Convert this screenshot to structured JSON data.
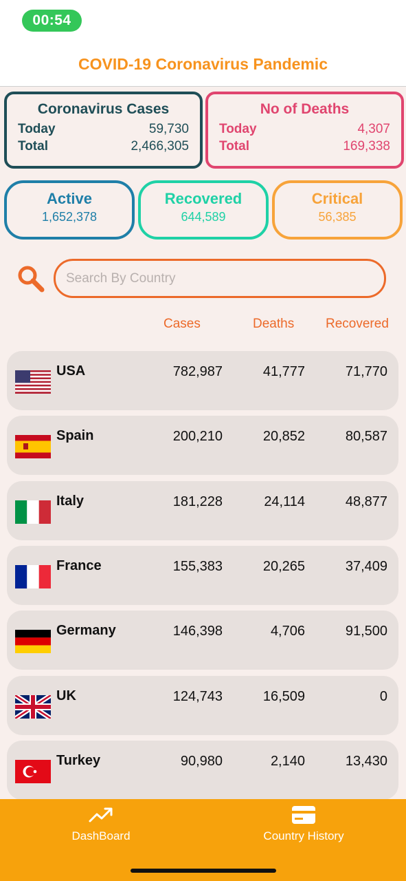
{
  "status": {
    "time": "00:54"
  },
  "header": {
    "title": "COVID-19 Coronavirus Pandemic"
  },
  "summary": {
    "cases": {
      "title": "Coronavirus Cases",
      "today_label": "Today",
      "today": "59,730",
      "total_label": "Total",
      "total": "2,466,305"
    },
    "deaths": {
      "title": "No of Deaths",
      "today_label": "Today",
      "today": "4,307",
      "total_label": "Total",
      "total": "169,338"
    },
    "active": {
      "title": "Active",
      "value": "1,652,378"
    },
    "recovered": {
      "title": "Recovered",
      "value": "644,589"
    },
    "critical": {
      "title": "Critical",
      "value": "56,385"
    }
  },
  "search": {
    "placeholder": "Search By Country",
    "icon": "search-icon"
  },
  "table": {
    "columns": [
      "Cases",
      "Deaths",
      "Recovered"
    ],
    "rows": [
      {
        "country": "USA",
        "cases": "782,987",
        "deaths": "41,777",
        "recovered": "71,770"
      },
      {
        "country": "Spain",
        "cases": "200,210",
        "deaths": "20,852",
        "recovered": "80,587"
      },
      {
        "country": "Italy",
        "cases": "181,228",
        "deaths": "24,114",
        "recovered": "48,877"
      },
      {
        "country": "France",
        "cases": "155,383",
        "deaths": "20,265",
        "recovered": "37,409"
      },
      {
        "country": "Germany",
        "cases": "146,398",
        "deaths": "4,706",
        "recovered": "91,500"
      },
      {
        "country": "UK",
        "cases": "124,743",
        "deaths": "16,509",
        "recovered": "0"
      },
      {
        "country": "Turkey",
        "cases": "90,980",
        "deaths": "2,140",
        "recovered": "13,430"
      }
    ]
  },
  "tabbar": {
    "dashboard": {
      "label": "DashBoard",
      "icon": "trending-up-icon"
    },
    "history": {
      "label": "Country History",
      "icon": "credit-card-icon"
    }
  },
  "colors": {
    "accent": "#f7931e",
    "tabbar": "#f7a20c",
    "search": "#ec6a2a"
  }
}
